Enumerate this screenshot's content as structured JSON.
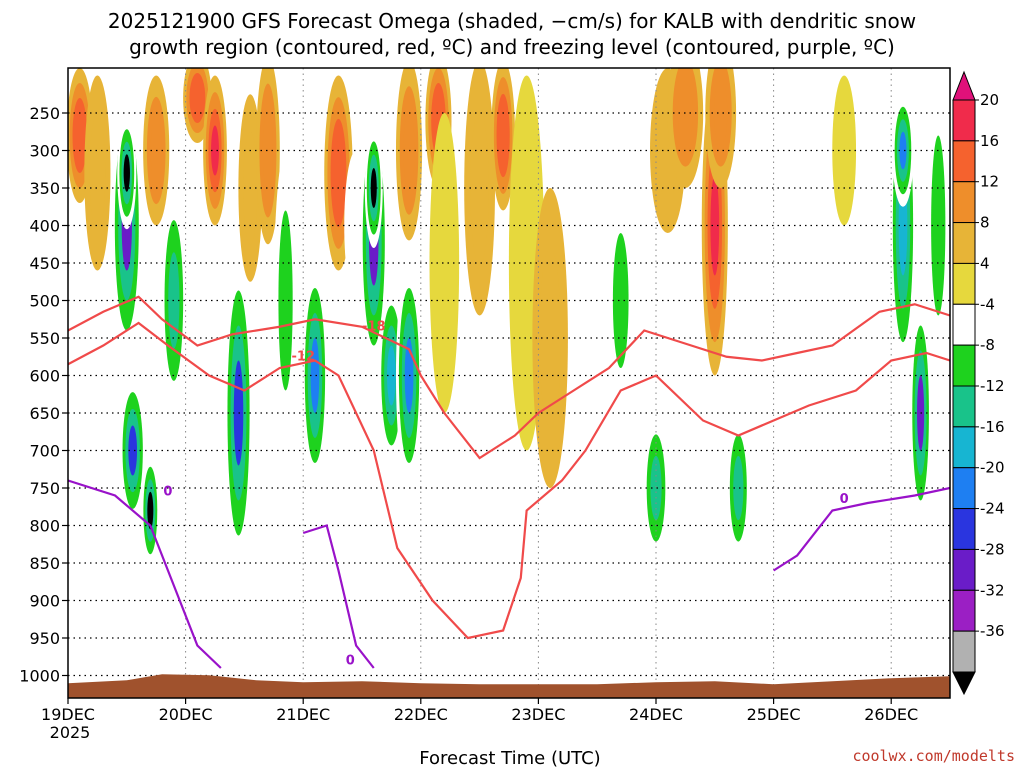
{
  "chart_data": {
    "type": "heatmap",
    "title_lines": [
      "2025121900 GFS Forecast Omega (shaded, −cm/s) for KALB with dendritic snow",
      "growth region (contoured, red, ºC) and freezing level (contoured, purple, ºC)"
    ],
    "xlabel": "Forecast Time (UTC)",
    "credit": "coolwx.com/modelts",
    "x_ticks": [
      "19DEC",
      "20DEC",
      "21DEC",
      "22DEC",
      "23DEC",
      "24DEC",
      "25DEC",
      "26DEC"
    ],
    "x_year": "2025",
    "x_range_days": [
      19.0,
      26.5
    ],
    "y_ticks": [
      250,
      300,
      350,
      400,
      450,
      500,
      550,
      600,
      650,
      700,
      750,
      800,
      850,
      900,
      950,
      1000
    ],
    "y_range_hpa": [
      1030,
      190
    ],
    "grid": true,
    "colorbar": {
      "levels": [
        20,
        16,
        12,
        8,
        4,
        -4,
        -8,
        -12,
        -16,
        -20,
        -24,
        -28,
        -32,
        -36
      ],
      "colors": [
        "#e0117a",
        "#f02b4b",
        "#f5622e",
        "#ee8e2b",
        "#e7b437",
        "#e6d83d",
        "#ffffff",
        "#1ed21e",
        "#19c38a",
        "#17b5d2",
        "#1e7ff2",
        "#2a35df",
        "#6a1cc8",
        "#9b1fc4",
        "#b1b1b1",
        "#000000"
      ]
    },
    "omega_cells": [
      {
        "day": 19.1,
        "p": 280,
        "w": 0.12,
        "h": 180,
        "v": 16
      },
      {
        "day": 19.25,
        "p": 330,
        "w": 0.12,
        "h": 260,
        "v": 8
      },
      {
        "day": 19.5,
        "p": 400,
        "w": 0.16,
        "h": 360,
        "v": -28
      },
      {
        "day": 19.5,
        "p": 330,
        "w": 0.06,
        "h": 150,
        "v": -36
      },
      {
        "day": 19.55,
        "p": 700,
        "w": 0.12,
        "h": 200,
        "v": -24
      },
      {
        "day": 19.7,
        "p": 780,
        "w": 0.05,
        "h": 150,
        "v": -36
      },
      {
        "day": 19.75,
        "p": 300,
        "w": 0.12,
        "h": 200,
        "v": 12
      },
      {
        "day": 19.9,
        "p": 500,
        "w": 0.12,
        "h": 300,
        "v": -12
      },
      {
        "day": 20.1,
        "p": 230,
        "w": 0.14,
        "h": 120,
        "v": 16
      },
      {
        "day": 20.25,
        "p": 300,
        "w": 0.1,
        "h": 200,
        "v": 20
      },
      {
        "day": 20.45,
        "p": 650,
        "w": 0.14,
        "h": 420,
        "v": -24
      },
      {
        "day": 20.55,
        "p": 350,
        "w": 0.1,
        "h": 250,
        "v": 8
      },
      {
        "day": 20.7,
        "p": 300,
        "w": 0.1,
        "h": 250,
        "v": 12
      },
      {
        "day": 20.85,
        "p": 500,
        "w": 0.1,
        "h": 400,
        "v": -8
      },
      {
        "day": 21.1,
        "p": 600,
        "w": 0.12,
        "h": 300,
        "v": -20
      },
      {
        "day": 21.3,
        "p": 330,
        "w": 0.14,
        "h": 260,
        "v": 16
      },
      {
        "day": 21.45,
        "p": 400,
        "w": 0.1,
        "h": 200,
        "v": -4
      },
      {
        "day": 21.6,
        "p": 420,
        "w": 0.14,
        "h": 360,
        "v": -28
      },
      {
        "day": 21.6,
        "p": 350,
        "w": 0.05,
        "h": 160,
        "v": -36
      },
      {
        "day": 21.75,
        "p": 600,
        "w": 0.12,
        "h": 240,
        "v": -16
      },
      {
        "day": 21.9,
        "p": 600,
        "w": 0.12,
        "h": 300,
        "v": -20
      },
      {
        "day": 21.9,
        "p": 300,
        "w": 0.12,
        "h": 240,
        "v": 12
      },
      {
        "day": 22.15,
        "p": 260,
        "w": 0.12,
        "h": 180,
        "v": 16
      },
      {
        "day": 22.2,
        "p": 450,
        "w": 0.15,
        "h": 400,
        "v": 4
      },
      {
        "day": 22.5,
        "p": 350,
        "w": 0.16,
        "h": 340,
        "v": 8
      },
      {
        "day": 22.7,
        "p": 280,
        "w": 0.1,
        "h": 200,
        "v": 16
      },
      {
        "day": 22.9,
        "p": 450,
        "w": 0.2,
        "h": 500,
        "v": 4
      },
      {
        "day": 23.1,
        "p": 550,
        "w": 0.2,
        "h": 400,
        "v": 8
      },
      {
        "day": 23.45,
        "p": 600,
        "w": 0.2,
        "h": 300,
        "v": -4
      },
      {
        "day": 23.7,
        "p": 500,
        "w": 0.12,
        "h": 300,
        "v": -8
      },
      {
        "day": 24.0,
        "p": 750,
        "w": 0.12,
        "h": 200,
        "v": -12
      },
      {
        "day": 24.1,
        "p": 300,
        "w": 0.2,
        "h": 220,
        "v": 8
      },
      {
        "day": 24.25,
        "p": 250,
        "w": 0.2,
        "h": 200,
        "v": 12
      },
      {
        "day": 24.5,
        "p": 400,
        "w": 0.12,
        "h": 400,
        "v": 20
      },
      {
        "day": 24.55,
        "p": 250,
        "w": 0.16,
        "h": 200,
        "v": 12
      },
      {
        "day": 24.7,
        "p": 750,
        "w": 0.1,
        "h": 200,
        "v": -12
      },
      {
        "day": 24.9,
        "p": 600,
        "w": 0.12,
        "h": 400,
        "v": -4
      },
      {
        "day": 25.4,
        "p": 400,
        "w": 0.2,
        "h": 400,
        "v": -4
      },
      {
        "day": 25.6,
        "p": 300,
        "w": 0.1,
        "h": 200,
        "v": 4
      },
      {
        "day": 25.9,
        "p": 500,
        "w": 0.15,
        "h": 500,
        "v": -4
      },
      {
        "day": 26.1,
        "p": 400,
        "w": 0.12,
        "h": 400,
        "v": -16
      },
      {
        "day": 26.1,
        "p": 300,
        "w": 0.08,
        "h": 150,
        "v": -20
      },
      {
        "day": 26.25,
        "p": 650,
        "w": 0.08,
        "h": 300,
        "v": -28
      },
      {
        "day": 26.4,
        "p": 400,
        "w": 0.1,
        "h": 400,
        "v": -8
      }
    ],
    "dgz_contours": [
      {
        "label": "-18",
        "label_at": [
          21.6,
          540
        ],
        "points": [
          [
            19.0,
            540
          ],
          [
            19.3,
            515
          ],
          [
            19.6,
            495
          ],
          [
            19.8,
            525
          ],
          [
            20.1,
            560
          ],
          [
            20.4,
            545
          ],
          [
            20.8,
            535
          ],
          [
            21.1,
            525
          ],
          [
            21.5,
            535
          ],
          [
            21.9,
            565
          ],
          [
            22.0,
            600
          ],
          [
            22.2,
            650
          ],
          [
            22.5,
            710
          ],
          [
            22.8,
            680
          ],
          [
            23.0,
            650
          ],
          [
            23.3,
            620
          ],
          [
            23.6,
            590
          ],
          [
            23.9,
            540
          ],
          [
            24.2,
            555
          ],
          [
            24.6,
            575
          ],
          [
            24.9,
            580
          ],
          [
            25.2,
            570
          ],
          [
            25.5,
            560
          ],
          [
            25.9,
            515
          ],
          [
            26.2,
            505
          ],
          [
            26.5,
            520
          ]
        ]
      },
      {
        "label": "-12",
        "label_at": [
          21.0,
          580
        ],
        "points": [
          [
            19.0,
            585
          ],
          [
            19.3,
            560
          ],
          [
            19.6,
            530
          ],
          [
            19.85,
            560
          ],
          [
            20.2,
            600
          ],
          [
            20.5,
            620
          ],
          [
            20.8,
            590
          ],
          [
            21.1,
            580
          ],
          [
            21.3,
            600
          ],
          [
            21.6,
            700
          ],
          [
            21.8,
            830
          ],
          [
            22.1,
            900
          ],
          [
            22.4,
            950
          ],
          [
            22.7,
            940
          ],
          [
            22.85,
            870
          ],
          [
            22.9,
            780
          ],
          [
            23.2,
            740
          ],
          [
            23.4,
            700
          ],
          [
            23.7,
            620
          ],
          [
            24.0,
            600
          ],
          [
            24.4,
            660
          ],
          [
            24.7,
            680
          ],
          [
            25.0,
            660
          ],
          [
            25.3,
            640
          ],
          [
            25.7,
            620
          ],
          [
            26.0,
            580
          ],
          [
            26.3,
            570
          ],
          [
            26.5,
            580
          ]
        ]
      }
    ],
    "freezing_contours": [
      {
        "label": "0",
        "label_at": [
          19.85,
          760
        ],
        "points": [
          [
            19.0,
            740
          ],
          [
            19.4,
            760
          ],
          [
            19.7,
            800
          ],
          [
            19.9,
            880
          ],
          [
            20.1,
            960
          ],
          [
            20.3,
            990
          ]
        ]
      },
      {
        "label": "0",
        "label_at": [
          21.4,
          985
        ],
        "points": [
          [
            21.0,
            810
          ],
          [
            21.2,
            800
          ],
          [
            21.3,
            860
          ],
          [
            21.45,
            960
          ],
          [
            21.6,
            990
          ]
        ]
      },
      {
        "label": "0",
        "label_at": [
          25.6,
          770
        ],
        "points": [
          [
            25.0,
            860
          ],
          [
            25.2,
            840
          ],
          [
            25.5,
            780
          ],
          [
            25.8,
            770
          ],
          [
            26.2,
            760
          ],
          [
            26.5,
            750
          ]
        ]
      }
    ],
    "terrain_hpa": 1005
  }
}
